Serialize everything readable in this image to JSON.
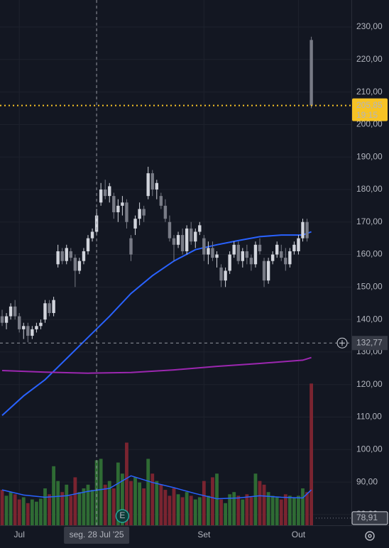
{
  "chart_data": {
    "type": "candlestick",
    "categories": [
      null,
      null,
      null,
      null,
      "Jul",
      null,
      null,
      null,
      null,
      null,
      null,
      null,
      null,
      null,
      null,
      null,
      null,
      null,
      null,
      null,
      null,
      null,
      "seg. 28 Jul '25",
      null,
      null,
      null,
      null,
      null,
      null,
      null,
      null,
      null,
      null,
      null,
      null,
      null,
      null,
      null,
      null,
      null,
      null,
      null,
      null,
      null,
      null,
      null,
      null,
      "Set",
      null,
      null,
      null,
      null,
      null,
      null,
      null,
      null,
      null,
      null,
      null,
      null,
      null,
      null,
      null,
      null,
      null,
      null,
      null,
      null,
      null,
      "Out",
      null,
      null,
      null
    ],
    "candles": [
      [
        141,
        143,
        138,
        139
      ],
      [
        139,
        142,
        137,
        141
      ],
      [
        141,
        145,
        140,
        144
      ],
      [
        144,
        146,
        140,
        141
      ],
      [
        141,
        142,
        136,
        137
      ],
      [
        137,
        139,
        134,
        138
      ],
      [
        138,
        139,
        133,
        135
      ],
      [
        135,
        138,
        134,
        137
      ],
      [
        137,
        139,
        136,
        138
      ],
      [
        138,
        140,
        137,
        139
      ],
      [
        140,
        146,
        139,
        145
      ],
      [
        145,
        146,
        141,
        142
      ],
      [
        142,
        147,
        141,
        146
      ],
      [
        157,
        163,
        156,
        161
      ],
      [
        161,
        162,
        157,
        158
      ],
      [
        158,
        163,
        157,
        162
      ],
      [
        161,
        162,
        158,
        159
      ],
      [
        159,
        160,
        150,
        155
      ],
      [
        155,
        159,
        154,
        158
      ],
      [
        158,
        162,
        157,
        161
      ],
      [
        161,
        166,
        160,
        165
      ],
      [
        165,
        168,
        164,
        167
      ],
      [
        167,
        174,
        166,
        172
      ],
      [
        176,
        182,
        175,
        180
      ],
      [
        180,
        183,
        177,
        178
      ],
      [
        178,
        182,
        176,
        181
      ],
      [
        178,
        179,
        171,
        173
      ],
      [
        173,
        177,
        170,
        175
      ],
      [
        175,
        178,
        172,
        176
      ],
      [
        176,
        177,
        168,
        170
      ],
      [
        165,
        166,
        158,
        160
      ],
      [
        168,
        172,
        166,
        171
      ],
      [
        171,
        176,
        169,
        174
      ],
      [
        174,
        175,
        170,
        172
      ],
      [
        178,
        187,
        177,
        185
      ],
      [
        185,
        186,
        178,
        180
      ],
      [
        180,
        183,
        177,
        182
      ],
      [
        178,
        179,
        174,
        175
      ],
      [
        175,
        177,
        170,
        171
      ],
      [
        170,
        172,
        164,
        165
      ],
      [
        165,
        166,
        158,
        163
      ],
      [
        163,
        167,
        162,
        166
      ],
      [
        166,
        168,
        160,
        161
      ],
      [
        161,
        169,
        160,
        168
      ],
      [
        168,
        170,
        163,
        164
      ],
      [
        164,
        168,
        162,
        167
      ],
      [
        167,
        170,
        166,
        169
      ],
      [
        165,
        166,
        158,
        160
      ],
      [
        160,
        164,
        157,
        162
      ],
      [
        162,
        164,
        158,
        159
      ],
      [
        159,
        161,
        156,
        160
      ],
      [
        156,
        157,
        150,
        152
      ],
      [
        152,
        156,
        150,
        155
      ],
      [
        155,
        161,
        154,
        160
      ],
      [
        160,
        164,
        159,
        163
      ],
      [
        163,
        164,
        157,
        158
      ],
      [
        158,
        162,
        156,
        161
      ],
      [
        161,
        163,
        157,
        159
      ],
      [
        159,
        160,
        155,
        157
      ],
      [
        157,
        164,
        156,
        163
      ],
      [
        163,
        165,
        160,
        161
      ],
      [
        158,
        159,
        150,
        152
      ],
      [
        152,
        159,
        151,
        158
      ],
      [
        158,
        161,
        157,
        160
      ],
      [
        160,
        164,
        159,
        163
      ],
      [
        161,
        163,
        158,
        159
      ],
      [
        159,
        162,
        155,
        157
      ],
      [
        157,
        162,
        156,
        161
      ],
      [
        161,
        164,
        160,
        163
      ],
      [
        161,
        166,
        160,
        165
      ],
      [
        165,
        171,
        164,
        170
      ],
      [
        170,
        171,
        164,
        165
      ],
      [
        226,
        227,
        205,
        205.85
      ]
    ],
    "up_color": "#d1d4dc",
    "down_color": "#787b86",
    "volume": [
      48,
      40,
      45,
      42,
      35,
      38,
      30,
      35,
      32,
      36,
      50,
      42,
      80,
      60,
      45,
      55,
      40,
      65,
      45,
      50,
      55,
      48,
      88,
      90,
      55,
      60,
      50,
      85,
      70,
      112,
      60,
      65,
      58,
      50,
      90,
      70,
      60,
      55,
      48,
      40,
      50,
      42,
      38,
      45,
      40,
      35,
      38,
      60,
      40,
      65,
      70,
      35,
      30,
      42,
      45,
      40,
      35,
      42,
      38,
      70,
      60,
      55,
      45,
      40,
      38,
      35,
      42,
      40,
      38,
      40,
      50,
      45,
      192
    ],
    "vlim": [
      0,
      200
    ],
    "volume_up_color": "#2f6b34",
    "volume_down_color": "#7a2430",
    "volume_ma": {
      "color": "#2962ff",
      "x": [
        0,
        5,
        10,
        15,
        20,
        25,
        30,
        35,
        40,
        45,
        50,
        55,
        60,
        65,
        70,
        72
      ],
      "values": [
        48,
        41,
        38,
        40,
        46,
        50,
        67,
        58,
        51,
        43,
        36,
        37,
        40,
        38,
        37,
        48
      ]
    },
    "lines": [
      {
        "color": "#2962ff",
        "x": [
          0,
          5,
          10,
          15,
          20,
          25,
          30,
          35,
          40,
          45,
          50,
          55,
          60,
          65,
          70,
          72
        ],
        "values": [
          110.5,
          116.5,
          121.5,
          128,
          134.5,
          141,
          148,
          153.5,
          158,
          161.5,
          163,
          164.3,
          165.5,
          166,
          166,
          167
        ]
      },
      {
        "color": "#9c27b0",
        "x": [
          0,
          10,
          20,
          30,
          40,
          50,
          60,
          70,
          72
        ],
        "values": [
          124.3,
          123.8,
          123.5,
          123.7,
          124.5,
          125.6,
          126.5,
          127.5,
          128.3
        ]
      }
    ],
    "ylim": [
      76.7,
      238.3
    ],
    "yticks": [
      {
        "value": 80,
        "label": "80,00"
      },
      {
        "value": 90,
        "label": "90,00"
      },
      {
        "value": 100,
        "label": "100,00"
      },
      {
        "value": 110,
        "label": "110,00"
      },
      {
        "value": 120,
        "label": "120,00"
      },
      {
        "value": 130,
        "label": "130,00"
      },
      {
        "value": 140,
        "label": "140,00"
      },
      {
        "value": 150,
        "label": "150,00"
      },
      {
        "value": 160,
        "label": "160,00"
      },
      {
        "value": 170,
        "label": "170,00"
      },
      {
        "value": 180,
        "label": "180,00"
      },
      {
        "value": 190,
        "label": "190,00"
      },
      {
        "value": 200,
        "label": "200,00"
      },
      {
        "value": 210,
        "label": "210,00"
      },
      {
        "value": 220,
        "label": "220,00"
      },
      {
        "value": 230,
        "label": "230,00"
      }
    ],
    "grid": true,
    "current_price": {
      "value": 205.85,
      "label": "205,85",
      "time": "19:15",
      "color": "#f7c325"
    },
    "crosshair": {
      "index": 22,
      "value": 132.77,
      "label": "132,77"
    },
    "low_marker": {
      "value": 78.91,
      "label": "78,91"
    },
    "event_marker": {
      "index": 28,
      "label": "E"
    }
  }
}
